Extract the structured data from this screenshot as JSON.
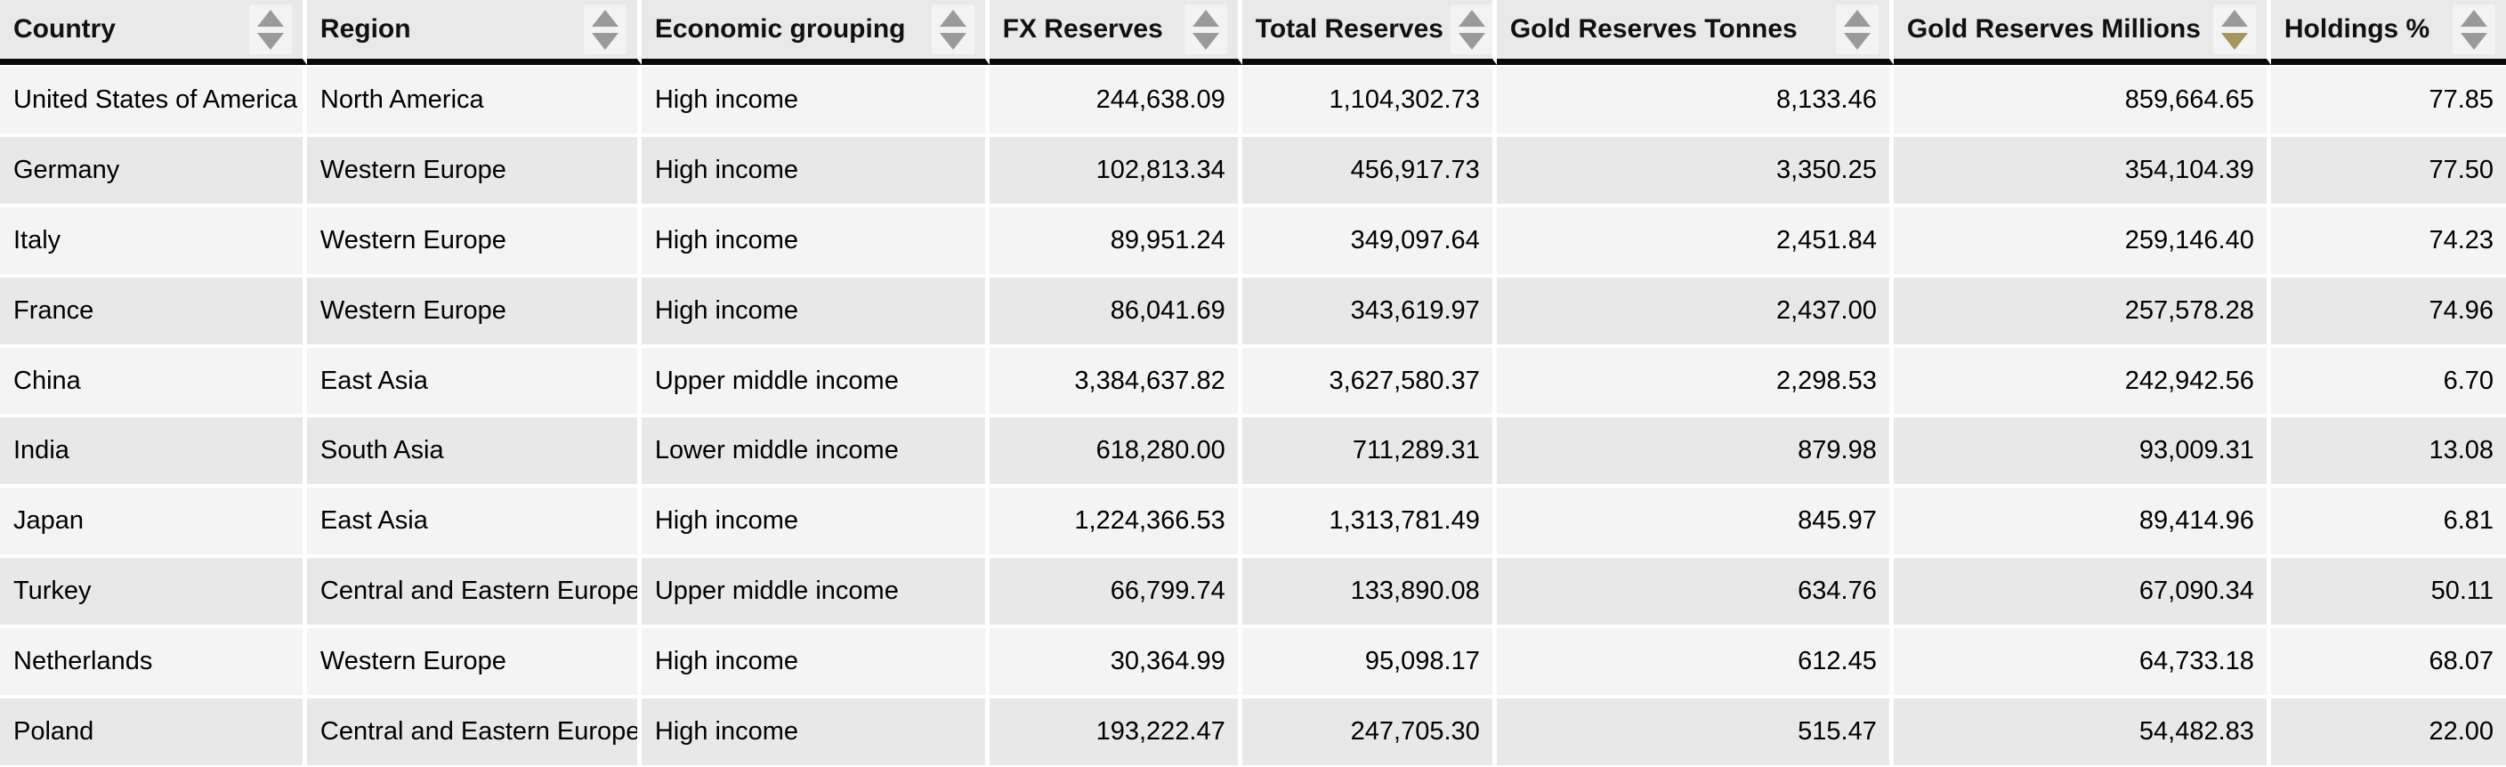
{
  "table": {
    "columns": [
      {
        "label": "Country",
        "align": "left",
        "sort": "none",
        "icon": "sort-arrows-icon"
      },
      {
        "label": "Region",
        "align": "left",
        "sort": "none",
        "icon": "sort-arrows-icon"
      },
      {
        "label": "Economic grouping",
        "align": "left",
        "sort": "none",
        "icon": "sort-arrows-icon"
      },
      {
        "label": "FX Reserves",
        "align": "right",
        "sort": "none",
        "icon": "sort-arrows-icon"
      },
      {
        "label": "Total Reserves",
        "align": "right",
        "sort": "none",
        "icon": "sort-arrows-icon"
      },
      {
        "label": "Gold Reserves Tonnes",
        "align": "right",
        "sort": "none",
        "icon": "sort-arrows-icon"
      },
      {
        "label": "Gold Reserves Millions",
        "align": "right",
        "sort": "desc",
        "icon": "sort-arrows-icon"
      },
      {
        "label": "Holdings %",
        "align": "right",
        "sort": "none",
        "icon": "sort-arrows-icon"
      }
    ],
    "rows": [
      [
        "United States of America",
        "North America",
        "High income",
        "244,638.09",
        "1,104,302.73",
        "8,133.46",
        "859,664.65",
        "77.85"
      ],
      [
        "Germany",
        "Western Europe",
        "High income",
        "102,813.34",
        "456,917.73",
        "3,350.25",
        "354,104.39",
        "77.50"
      ],
      [
        "Italy",
        "Western Europe",
        "High income",
        "89,951.24",
        "349,097.64",
        "2,451.84",
        "259,146.40",
        "74.23"
      ],
      [
        "France",
        "Western Europe",
        "High income",
        "86,041.69",
        "343,619.97",
        "2,437.00",
        "257,578.28",
        "74.96"
      ],
      [
        "China",
        "East Asia",
        "Upper middle income",
        "3,384,637.82",
        "3,627,580.37",
        "2,298.53",
        "242,942.56",
        "6.70"
      ],
      [
        "India",
        "South Asia",
        "Lower middle income",
        "618,280.00",
        "711,289.31",
        "879.98",
        "93,009.31",
        "13.08"
      ],
      [
        "Japan",
        "East Asia",
        "High income",
        "1,224,366.53",
        "1,313,781.49",
        "845.97",
        "89,414.96",
        "6.81"
      ],
      [
        "Turkey",
        "Central and Eastern Europe",
        "Upper middle income",
        "66,799.74",
        "133,890.08",
        "634.76",
        "67,090.34",
        "50.11"
      ],
      [
        "Netherlands",
        "Western Europe",
        "High income",
        "30,364.99",
        "95,098.17",
        "612.45",
        "64,733.18",
        "68.07"
      ],
      [
        "Poland",
        "Central and Eastern Europe",
        "High income",
        "193,222.47",
        "247,705.30",
        "515.47",
        "54,482.83",
        "22.00"
      ]
    ]
  },
  "colors": {
    "sort_active": "#a59659",
    "sort_inactive": "#9a9a9a",
    "row_odd": "#f4f4f4",
    "row_even": "#e8e8e8",
    "header_bg": "#e9e9e9",
    "header_rule": "#0a0a0a",
    "cell_divider": "#c9c9c9"
  }
}
